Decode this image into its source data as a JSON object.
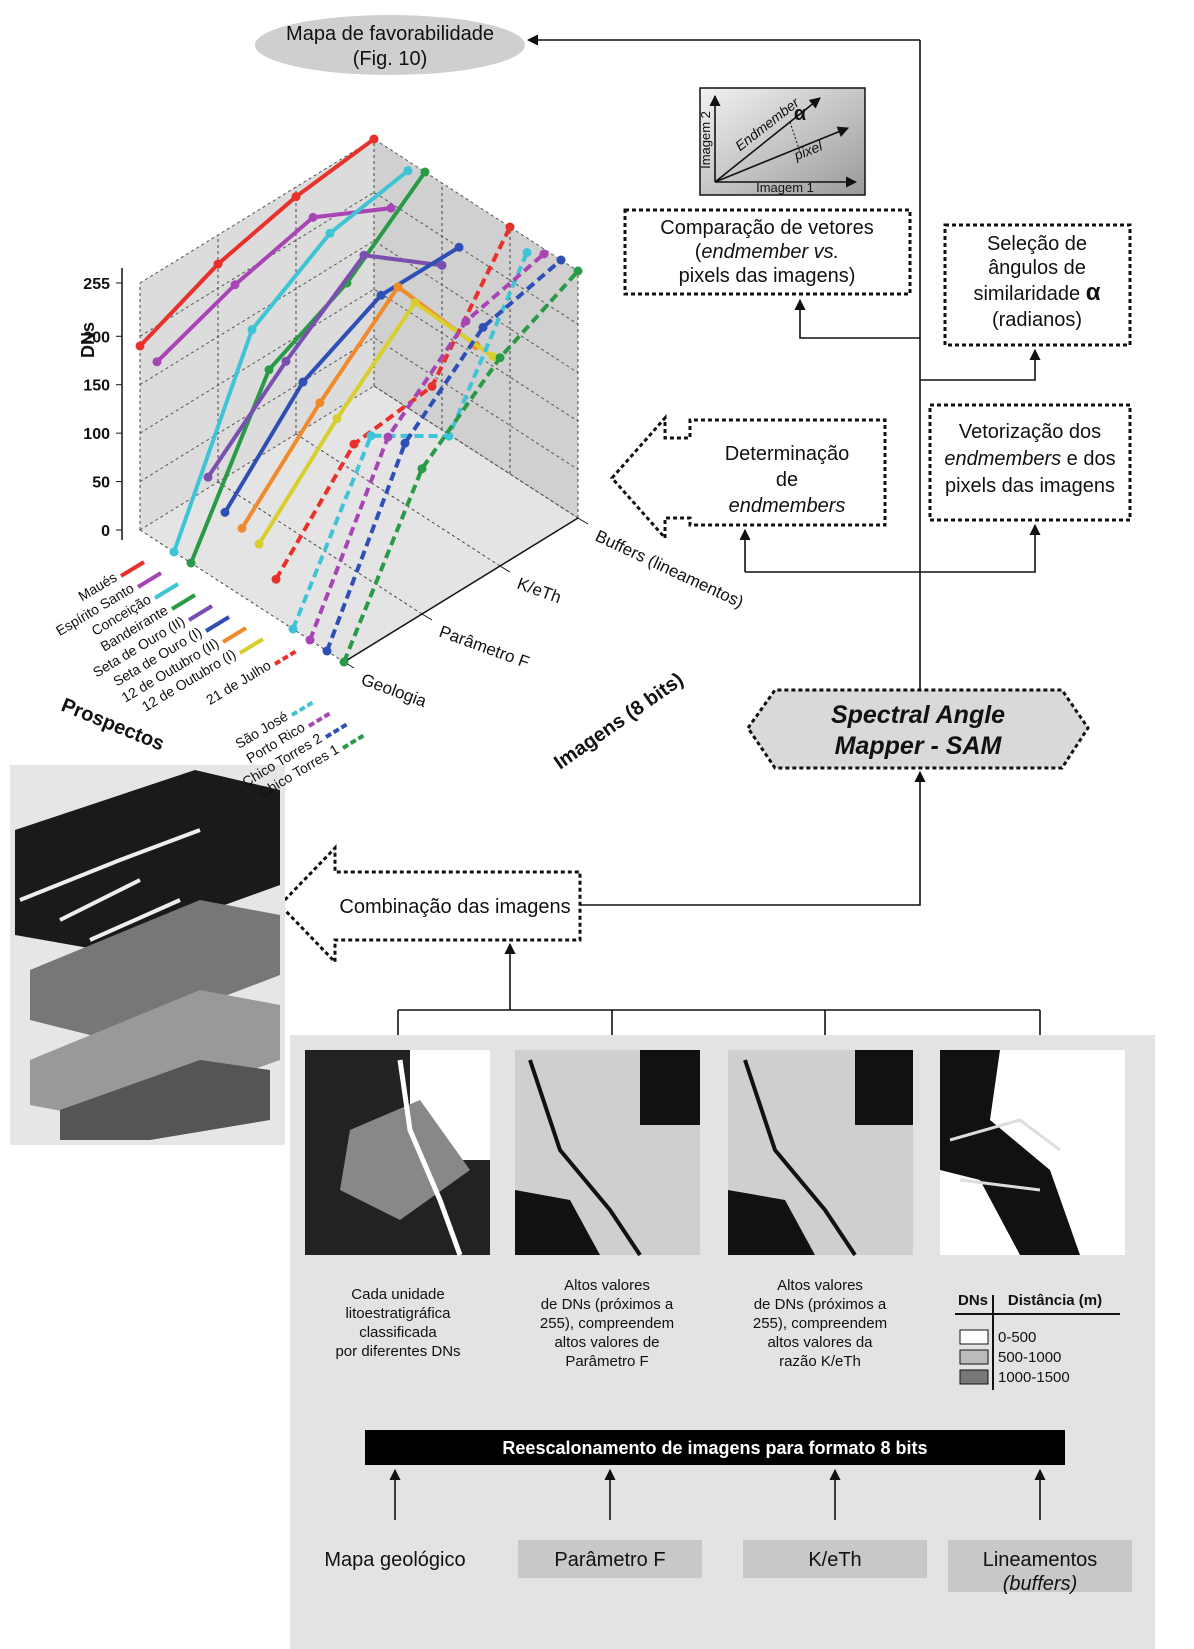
{
  "favorability": {
    "title": "Mapa de favorabilidade",
    "ref": "(Fig. 10)"
  },
  "chart_data": {
    "type": "line3d",
    "y_label": "DNs",
    "x_label": "Imagens (8 bits)",
    "series_label": "Prospectos",
    "categories": [
      "Geologia",
      "Parâmetro F",
      "K/eTh",
      "Buffers (lineamentos)"
    ],
    "ylim": [
      0,
      255
    ],
    "yticks": [
      0,
      50,
      100,
      150,
      200,
      255
    ],
    "grid": true,
    "series": [
      {
        "name": "Maués",
        "color": "#e8312a",
        "dashed": false,
        "values": [
          190,
          225,
          245,
          255
        ]
      },
      {
        "name": "Espírito Santo",
        "color": "#a845b5",
        "dashed": false,
        "values": [
          185,
          215,
          235,
          195
        ]
      },
      {
        "name": "Conceição",
        "color": "#3fc4d6",
        "dashed": false,
        "values": [
          0,
          180,
          230,
          245
        ]
      },
      {
        "name": "Bandeirante",
        "color": "#2a9a48",
        "dashed": false,
        "values": [
          0,
          150,
          190,
          255
        ]
      },
      {
        "name": "Seta de Ouro (II)",
        "color": "#7a4fb0",
        "dashed": false,
        "values": [
          100,
          170,
          230,
          170
        ]
      },
      {
        "name": "Seta de Ouro (I)",
        "color": "#2e4fb5",
        "dashed": false,
        "values": [
          75,
          160,
          200,
          200
        ]
      },
      {
        "name": "12 de Outubro (II)",
        "color": "#f08a2c",
        "dashed": false,
        "values": [
          70,
          150,
          220,
          110
        ]
      },
      {
        "name": "12 de Outubro (I)",
        "color": "#d8cf2e",
        "dashed": false,
        "values": [
          65,
          145,
          215,
          110
        ]
      },
      {
        "name": "21 de Julho",
        "color": "#e8312a",
        "dashed": true,
        "values": [
          40,
          130,
          140,
          255
        ]
      },
      {
        "name": "São José",
        "color": "#3fc4d6",
        "dashed": true,
        "values": [
          0,
          150,
          100,
          240
        ]
      },
      {
        "name": "Porto Rico",
        "color": "#a845b5",
        "dashed": true,
        "values": [
          0,
          160,
          230,
          250
        ]
      },
      {
        "name": "Chico Torres 2",
        "color": "#2e4fb5",
        "dashed": true,
        "values": [
          0,
          165,
          235,
          255
        ]
      },
      {
        "name": "Chico Torres 1",
        "color": "#2a9a48",
        "dashed": true,
        "values": [
          0,
          150,
          215,
          255
        ]
      }
    ]
  },
  "vector_inset": {
    "y_axis": "Imagem 2",
    "x_axis": "Imagem 1",
    "vector1": "Endmember",
    "vector2": "pixel",
    "angle": "α"
  },
  "comparison_box": {
    "line1": "Comparação de vetores",
    "line2_open": "(",
    "line2_italic": "endmember vs.",
    "line3": "pixels das imagens)"
  },
  "selection_box": {
    "line1": "Seleção de",
    "line2": "ângulos de",
    "line3": "similaridade",
    "alpha": "α",
    "line4": "(radianos)"
  },
  "vectorization_box": {
    "line1": "Vetorização dos",
    "line2_italic": "endmembers",
    "line2": " e dos",
    "line3": "pixels das imagens"
  },
  "endmember_box": {
    "line1": "Determinação",
    "line2": "de",
    "line3": "endmembers"
  },
  "sam": {
    "line1": "Spectral Angle",
    "line2": "Mapper - SAM"
  },
  "combination": "Combinação das imagens",
  "captions": [
    [
      "Cada unidade",
      "litoestratigráfica",
      "classificada",
      "por diferentes DNs"
    ],
    [
      "Altos valores",
      "de DNs (próximos a",
      "255), compreendem",
      "altos valores de",
      "Parâmetro F"
    ],
    [
      "Altos valores",
      "de DNs (próximos a",
      "255), compreendem",
      "altos valores da",
      "razão K/eTh"
    ]
  ],
  "distance_legend": {
    "col1": "DNs",
    "col2": "Distância (m)",
    "classes": [
      "0-500",
      "500-1000",
      "1000-1500"
    ]
  },
  "rescale_bar": "Reescalonamento de imagens para formato 8 bits",
  "inputs": [
    "Mapa geológico",
    "Parâmetro F",
    "K/eTh",
    "Lineamentos"
  ],
  "inputs_note": "(buffers)"
}
